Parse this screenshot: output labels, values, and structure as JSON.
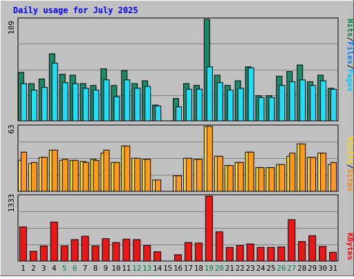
{
  "title": "Daily usage for July 2025",
  "colors": {
    "background": "#c0c0c0",
    "title": "#0000ff",
    "pages": "#00c8ff",
    "files": "#0080ff",
    "hits": "#008040",
    "hits_bar": "#1a8a6a",
    "pages_bar": "#22ddf5",
    "sites": "#ff8000",
    "sites_bar": "#ff9a1c",
    "visits": "#ffd800",
    "visits_bar": "#ffdc28",
    "kbytes": "#ff0000",
    "kbytes_bar": "#e81818",
    "weekend_label": "#008040"
  },
  "legend_hits": {
    "pages": "Pages",
    "sep1": "/",
    "files": "Files",
    "sep2": "/",
    "hits": "Hits"
  },
  "legend_visits": {
    "sites": "Sites",
    "sep": "/",
    "visits": "Visits"
  },
  "legend_kbytes": {
    "kbytes": "KBytes"
  },
  "chart_data": [
    {
      "type": "bar",
      "panel": "hits",
      "ymax_label": "109",
      "ylim": [
        0,
        109
      ],
      "categories": [
        "1",
        "2",
        "3",
        "4",
        "5",
        "6",
        "7",
        "8",
        "9",
        "10",
        "11",
        "12",
        "13",
        "14",
        "15",
        "16",
        "17",
        "18",
        "19",
        "20",
        "21",
        "22",
        "23",
        "24",
        "25",
        "26",
        "27",
        "28",
        "29",
        "30",
        "31"
      ],
      "weekend_days": [
        "5",
        "6",
        "12",
        "13",
        "19",
        "20",
        "26",
        "27"
      ],
      "series": [
        {
          "name": "Hits",
          "values": [
            52,
            40,
            45,
            72,
            50,
            49,
            40,
            38,
            56,
            38,
            54,
            40,
            43,
            17,
            0,
            24,
            40,
            38,
            109,
            49,
            38,
            43,
            58,
            27,
            27,
            48,
            53,
            60,
            42,
            49,
            35
          ]
        },
        {
          "name": "Files",
          "values": [
            35,
            28,
            30,
            43,
            30,
            29,
            25,
            25,
            32,
            22,
            31,
            27,
            28,
            10,
            0,
            14,
            23,
            22,
            51,
            32,
            24,
            27,
            37,
            19,
            19,
            30,
            32,
            37,
            28,
            32,
            24
          ]
        },
        {
          "name": "Pages",
          "values": [
            40,
            33,
            36,
            62,
            41,
            40,
            35,
            33,
            44,
            26,
            44,
            35,
            37,
            16,
            0,
            15,
            34,
            34,
            58,
            41,
            33,
            35,
            57,
            25,
            25,
            38,
            42,
            44,
            38,
            43,
            34
          ]
        }
      ]
    },
    {
      "type": "bar",
      "panel": "visits",
      "ymax_label": "63",
      "ylim": [
        0,
        63
      ],
      "categories": [
        "1",
        "2",
        "3",
        "4",
        "5",
        "6",
        "7",
        "8",
        "9",
        "10",
        "11",
        "12",
        "13",
        "14",
        "15",
        "16",
        "17",
        "18",
        "19",
        "20",
        "21",
        "22",
        "23",
        "24",
        "25",
        "26",
        "27",
        "28",
        "29",
        "30",
        "31"
      ],
      "series": [
        {
          "name": "Visits",
          "values": [
            30,
            27,
            33,
            40,
            30,
            30,
            29,
            31,
            37,
            28,
            44,
            32,
            31,
            11,
            0,
            15,
            32,
            31,
            63,
            34,
            25,
            28,
            38,
            23,
            23,
            26,
            34,
            46,
            33,
            37,
            26
          ]
        },
        {
          "name": "Sites",
          "values": [
            38,
            28,
            33,
            40,
            31,
            30,
            28,
            30,
            40,
            28,
            44,
            32,
            31,
            11,
            0,
            15,
            32,
            31,
            63,
            34,
            25,
            28,
            38,
            23,
            23,
            26,
            37,
            46,
            33,
            37,
            28
          ]
        }
      ]
    },
    {
      "type": "bar",
      "panel": "kbytes",
      "ymax_label": "1333",
      "ylim": [
        0,
        1333
      ],
      "categories": [
        "1",
        "2",
        "3",
        "4",
        "5",
        "6",
        "7",
        "8",
        "9",
        "10",
        "11",
        "12",
        "13",
        "14",
        "15",
        "16",
        "17",
        "18",
        "19",
        "20",
        "21",
        "22",
        "23",
        "24",
        "25",
        "26",
        "27",
        "28",
        "29",
        "30",
        "31"
      ],
      "series": [
        {
          "name": "KBytes",
          "values": [
            700,
            200,
            310,
            800,
            310,
            440,
            510,
            310,
            460,
            380,
            450,
            440,
            320,
            190,
            0,
            130,
            380,
            370,
            1333,
            600,
            280,
            320,
            350,
            280,
            280,
            290,
            850,
            400,
            520,
            300,
            180
          ]
        }
      ]
    }
  ]
}
